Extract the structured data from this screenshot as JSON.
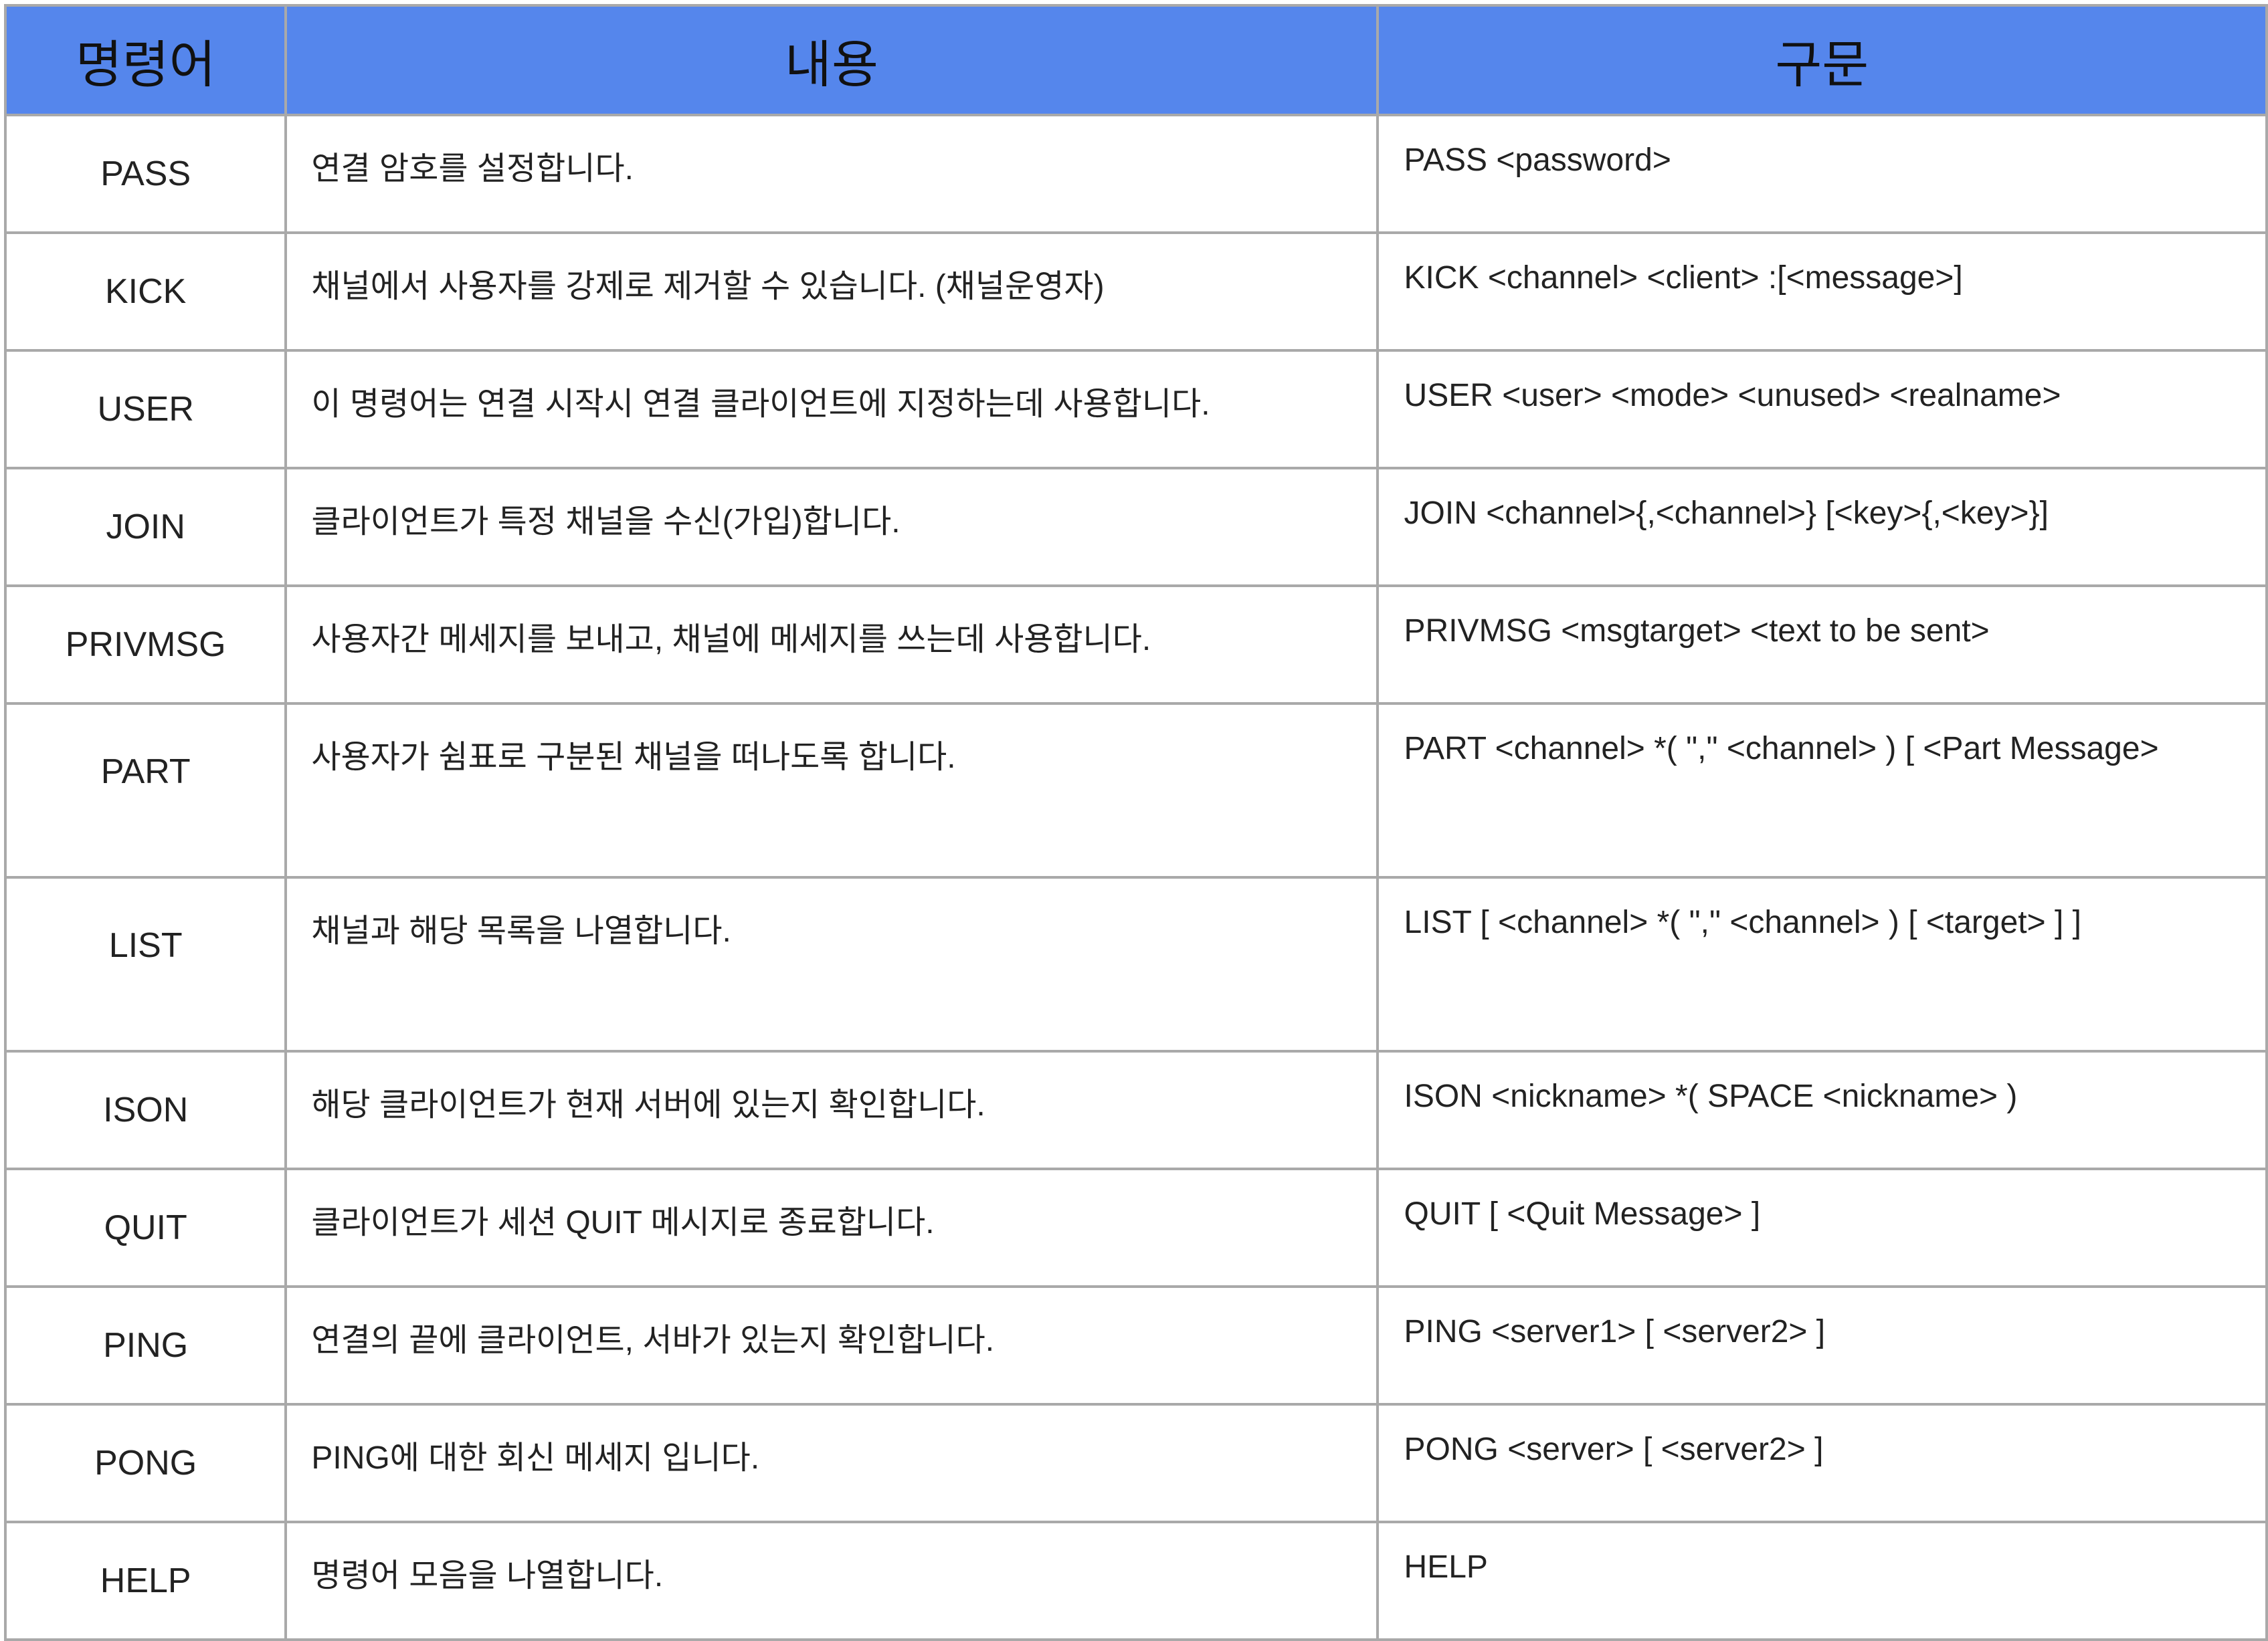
{
  "table": {
    "headers": {
      "command": "명령어",
      "description": "내용",
      "syntax": "구문"
    },
    "rows": [
      {
        "command": "PASS",
        "description": "연결 암호를 설정합니다.",
        "syntax": "PASS <password>"
      },
      {
        "command": "KICK",
        "description": "채널에서 사용자를 강제로 제거할 수 있습니다. (채널운영자)",
        "syntax": "KICK <channel> <client> :[<message>]"
      },
      {
        "command": "USER",
        "description": "이 명령어는 연결 시작시 연결 클라이언트에 지정하는데 사용합니다.",
        "syntax": "USER <user> <mode> <unused> <realname>"
      },
      {
        "command": "JOIN",
        "description": "클라이언트가 특정 채널을 수신(가입)합니다.",
        "syntax": "JOIN <channel>{,<channel>} [<key>{,<key>}]"
      },
      {
        "command": "PRIVMSG",
        "description": "사용자간 메세지를 보내고, 채널에 메세지를 쓰는데 사용합니다.",
        "syntax": "PRIVMSG <msgtarget> <text to be sent>"
      },
      {
        "command": "PART",
        "description": "사용자가 쉼표로 구분된 채널을 떠나도록 합니다.",
        "syntax": "PART <channel> *( \",\" <channel> ) [ <Part Message>"
      },
      {
        "command": "LIST",
        "description": "채널과 해당 목록을 나열합니다.",
        "syntax": "LIST [ <channel> *( \",\" <channel> ) [ <target> ] ]"
      },
      {
        "command": "ISON",
        "description": "해당 클라이언트가 현재 서버에 있는지 확인합니다.",
        "syntax": "ISON <nickname> *( SPACE <nickname> )"
      },
      {
        "command": "QUIT",
        "description": "클라이언트가 세션 QUIT 메시지로 종료합니다.",
        "syntax": "QUIT [ <Quit Message> ]"
      },
      {
        "command": "PING",
        "description": "연결의 끝에 클라이언트, 서바가 있는지 확인합니다.",
        "syntax": "PING <server1> [ <server2> ]"
      },
      {
        "command": "PONG",
        "description": "PING에 대한 회신 메세지 입니다.",
        "syntax": "PONG <server> [ <server2> ]"
      },
      {
        "command": "HELP",
        "description": "명령어 모음을 나열합니다.",
        "syntax": "HELP"
      }
    ]
  },
  "colors": {
    "header_background": "#5586ec",
    "border": "#a9a9a9"
  }
}
